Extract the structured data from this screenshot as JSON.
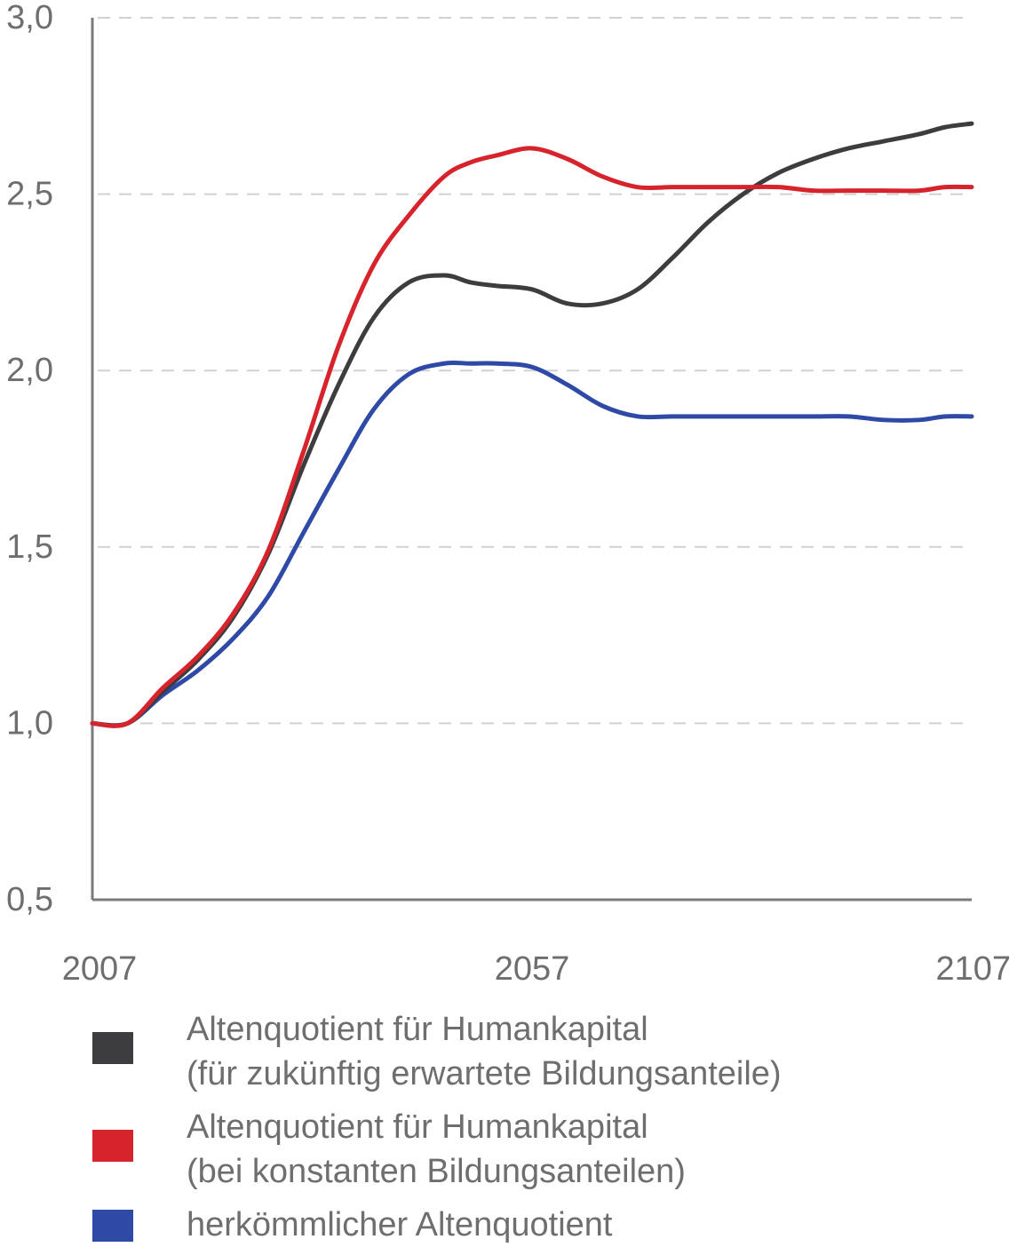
{
  "chart_data": {
    "type": "line",
    "title": "",
    "xlabel": "",
    "ylabel": "",
    "x_ticks": [
      "2007",
      "2057",
      "2107"
    ],
    "y_ticks": [
      "0,5",
      "1,0",
      "1,5",
      "2,0",
      "2,5",
      "3,0"
    ],
    "xlim": [
      2007,
      2107
    ],
    "ylim": [
      0.5,
      3.0
    ],
    "grid": "horizontal-dashed",
    "legend_position": "bottom",
    "series": [
      {
        "name_lines": [
          "Altenquotient für Humankapital",
          "(für zukünftig erwartete Bildungsanteile)"
        ],
        "color": "#3d3d3f",
        "x": [
          2007,
          2011,
          2015,
          2019,
          2023,
          2027,
          2031,
          2035,
          2039,
          2043,
          2047,
          2050,
          2053,
          2057,
          2061,
          2065,
          2069,
          2073,
          2077,
          2081,
          2085,
          2089,
          2093,
          2097,
          2101,
          2104,
          2107
        ],
        "y": [
          1.0,
          1.0,
          1.09,
          1.18,
          1.3,
          1.48,
          1.73,
          1.96,
          2.15,
          2.25,
          2.27,
          2.25,
          2.24,
          2.23,
          2.19,
          2.19,
          2.23,
          2.32,
          2.42,
          2.5,
          2.56,
          2.6,
          2.63,
          2.65,
          2.67,
          2.69,
          2.7
        ]
      },
      {
        "name_lines": [
          "Altenquotient für Humankapital",
          "(bei konstanten Bildungsanteilen)"
        ],
        "color": "#d7232b",
        "x": [
          2007,
          2011,
          2015,
          2019,
          2023,
          2027,
          2031,
          2035,
          2039,
          2043,
          2047,
          2050,
          2053,
          2057,
          2061,
          2065,
          2069,
          2073,
          2077,
          2081,
          2085,
          2089,
          2093,
          2097,
          2101,
          2104,
          2107
        ],
        "y": [
          1.0,
          1.0,
          1.1,
          1.19,
          1.31,
          1.49,
          1.77,
          2.07,
          2.3,
          2.44,
          2.55,
          2.59,
          2.61,
          2.63,
          2.6,
          2.55,
          2.52,
          2.52,
          2.52,
          2.52,
          2.52,
          2.51,
          2.51,
          2.51,
          2.51,
          2.52,
          2.52
        ]
      },
      {
        "name_lines": [
          "herkömmlicher Altenquotient"
        ],
        "color": "#2e4aa6",
        "x": [
          2007,
          2011,
          2015,
          2019,
          2023,
          2027,
          2031,
          2035,
          2039,
          2043,
          2047,
          2050,
          2053,
          2057,
          2061,
          2065,
          2069,
          2073,
          2077,
          2081,
          2085,
          2089,
          2093,
          2097,
          2101,
          2104,
          2107
        ],
        "y": [
          1.0,
          1.0,
          1.08,
          1.15,
          1.24,
          1.36,
          1.54,
          1.72,
          1.89,
          1.99,
          2.02,
          2.02,
          2.02,
          2.01,
          1.96,
          1.9,
          1.87,
          1.87,
          1.87,
          1.87,
          1.87,
          1.87,
          1.87,
          1.86,
          1.86,
          1.87,
          1.87
        ]
      }
    ]
  }
}
